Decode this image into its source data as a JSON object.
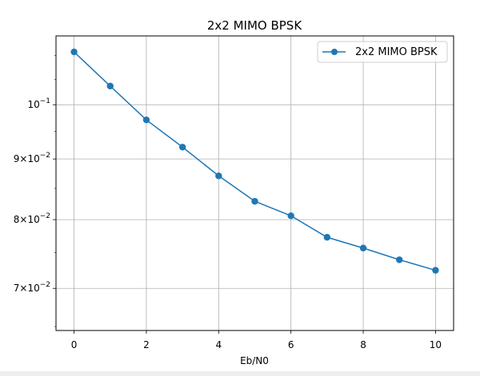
{
  "chart_data": {
    "type": "line",
    "title": "2x2 MIMO BPSK",
    "xlabel": "Eb/N0",
    "ylabel": "",
    "yscale": "log",
    "xlim": [
      -0.5,
      10.5
    ],
    "ylim": [
      0.0645,
      0.1143
    ],
    "x_ticks": [
      0,
      2,
      4,
      6,
      8,
      10
    ],
    "y_ticks": [
      0.07,
      0.08,
      0.09,
      0.1
    ],
    "y_tick_labels": [
      {
        "base": "7",
        "mid": "×10",
        "exp": "−2"
      },
      {
        "base": "8",
        "mid": "×10",
        "exp": "−2"
      },
      {
        "base": "9",
        "mid": "×10",
        "exp": "−2"
      },
      {
        "base": "",
        "mid": "10",
        "exp": "−1"
      }
    ],
    "grid": true,
    "legend": {
      "placement": "upper-right"
    },
    "colors": {
      "series": "#1f77b4",
      "grid": "#b0b0b0",
      "axes": "#000000"
    },
    "series": [
      {
        "name": "2x2 MIMO BPSK",
        "marker": "circle",
        "x": [
          0,
          1,
          2,
          3,
          4,
          5,
          6,
          7,
          8,
          9,
          10
        ],
        "values": [
          0.1108,
          0.1037,
          0.0971,
          0.0921,
          0.0871,
          0.0829,
          0.0806,
          0.0773,
          0.0757,
          0.074,
          0.0725
        ]
      }
    ]
  }
}
